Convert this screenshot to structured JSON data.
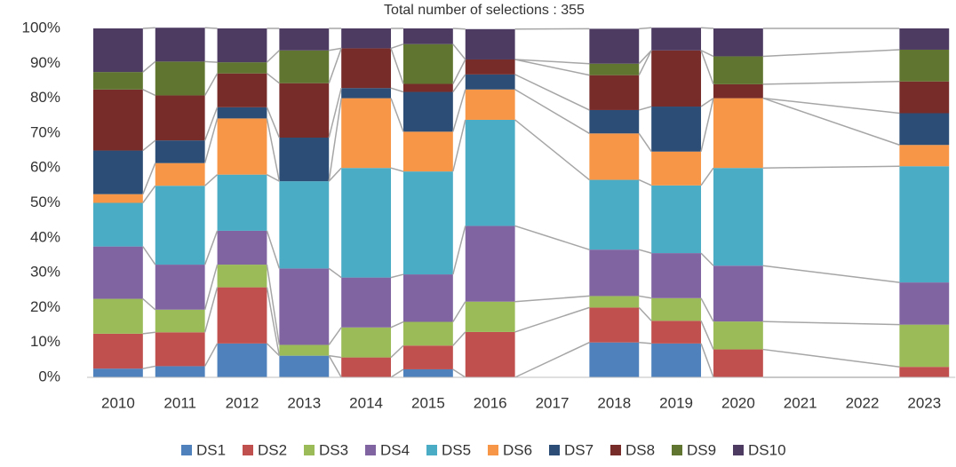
{
  "chart_data": {
    "type": "stacked-bar-100",
    "title": "Total number of selections : 355",
    "categories": [
      "2010",
      "2011",
      "2012",
      "2013",
      "2014",
      "2015",
      "2016",
      "2017",
      "2018",
      "2019",
      "2020",
      "2021",
      "2022",
      "2023"
    ],
    "series": [
      {
        "name": "DS1",
        "color": "#4f81bd",
        "values": [
          2.5,
          3.2,
          9.7,
          6.2,
          0,
          2.3,
          0,
          null,
          10,
          9.7,
          0,
          null,
          null,
          0
        ]
      },
      {
        "name": "DS2",
        "color": "#c0504d",
        "values": [
          10,
          9.7,
          16.1,
          0,
          5.7,
          6.8,
          13,
          null,
          10,
          6.5,
          8,
          null,
          null,
          3
        ]
      },
      {
        "name": "DS3",
        "color": "#9bbb59",
        "values": [
          10,
          6.5,
          6.5,
          3.1,
          8.6,
          6.8,
          8.7,
          null,
          3.3,
          6.5,
          8,
          null,
          null,
          12.1
        ]
      },
      {
        "name": "DS4",
        "color": "#8064a2",
        "values": [
          15,
          12.9,
          9.7,
          21.9,
          14.3,
          13.6,
          21.7,
          null,
          13.3,
          12.9,
          16,
          null,
          null,
          12.1
        ]
      },
      {
        "name": "DS5",
        "color": "#4bacc6",
        "values": [
          12.5,
          22.6,
          16.1,
          25,
          31.4,
          29.5,
          30.4,
          null,
          20,
          19.4,
          28,
          null,
          null,
          33.3
        ]
      },
      {
        "name": "DS6",
        "color": "#f79646",
        "values": [
          2.5,
          6.5,
          16.1,
          0,
          20,
          11.4,
          8.7,
          null,
          13.3,
          9.7,
          20,
          null,
          null,
          6.1
        ]
      },
      {
        "name": "DS7",
        "color": "#2c4d75",
        "values": [
          12.5,
          6.5,
          3.2,
          12.5,
          2.9,
          11.4,
          4.3,
          null,
          6.7,
          12.9,
          0,
          null,
          null,
          9.1
        ]
      },
      {
        "name": "DS8",
        "color": "#772c2a",
        "values": [
          17.5,
          12.9,
          9.7,
          15.6,
          11.4,
          2.3,
          4.3,
          null,
          10,
          16.1,
          4,
          null,
          null,
          9.1
        ]
      },
      {
        "name": "DS9",
        "color": "#5f7530",
        "values": [
          5,
          9.7,
          3.2,
          9.4,
          0,
          11.4,
          0,
          null,
          3.3,
          0,
          8,
          null,
          null,
          9.1
        ]
      },
      {
        "name": "DS10",
        "color": "#4d3b62",
        "values": [
          12.5,
          9.7,
          9.7,
          6.3,
          5.7,
          4.5,
          8.7,
          null,
          10,
          6.5,
          8,
          null,
          null,
          6.1
        ]
      }
    ],
    "ylim": [
      0,
      100
    ],
    "yticks": [
      {
        "value": 0,
        "label": "0%"
      },
      {
        "value": 10,
        "label": "10%"
      },
      {
        "value": 20,
        "label": "20%"
      },
      {
        "value": 30,
        "label": "30%"
      },
      {
        "value": 40,
        "label": "40%"
      },
      {
        "value": 50,
        "label": "50%"
      },
      {
        "value": 60,
        "label": "60%"
      },
      {
        "value": 70,
        "label": "70%"
      },
      {
        "value": 80,
        "label": "80%"
      },
      {
        "value": 90,
        "label": "90%"
      },
      {
        "value": 100,
        "label": "100%"
      }
    ],
    "series_lines": true,
    "legend": "bottom",
    "grid": false
  }
}
